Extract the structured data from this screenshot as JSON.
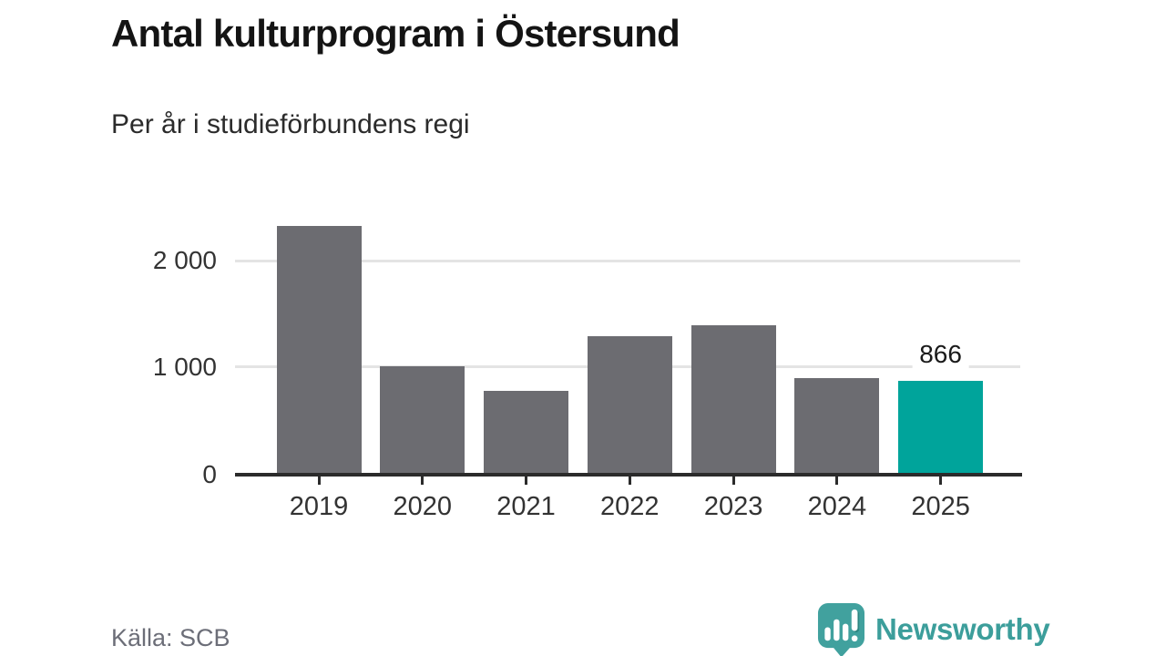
{
  "header": {
    "title": "Antal kulturprogram i Östersund",
    "subtitle": "Per år i studieförbundens regi"
  },
  "footer": {
    "source": "Källa: SCB",
    "logo_text": "Newsworthy"
  },
  "colors": {
    "bar": "#6C6C71",
    "highlight": "#00A49B",
    "gridline": "#E4E4E4",
    "axis": "#2B2B2B",
    "tick_label": "#333333",
    "logo_teal": "#3C9E9B",
    "icon_teal": "#41A19E"
  },
  "chart_data": {
    "type": "bar",
    "title": "Antal kulturprogram i Östersund",
    "subtitle": "Per år i studieförbundens regi",
    "categories": [
      "2019",
      "2020",
      "2021",
      "2022",
      "2023",
      "2024",
      "2025"
    ],
    "values": [
      2330,
      1005,
      775,
      1290,
      1390,
      895,
      866
    ],
    "highlight_index": 6,
    "annotations": [
      {
        "category": "2025",
        "label": "866"
      }
    ],
    "xlabel": "",
    "ylabel": "",
    "ylim": [
      0,
      2405
    ],
    "yticks": [
      {
        "value": 0,
        "label": "0"
      },
      {
        "value": 1000,
        "label": "1 000"
      },
      {
        "value": 2000,
        "label": "2 000"
      }
    ],
    "gridlines": [
      1000,
      2000
    ],
    "grid": "horizontal-only",
    "legend_position": "none",
    "source": "Källa: SCB"
  }
}
